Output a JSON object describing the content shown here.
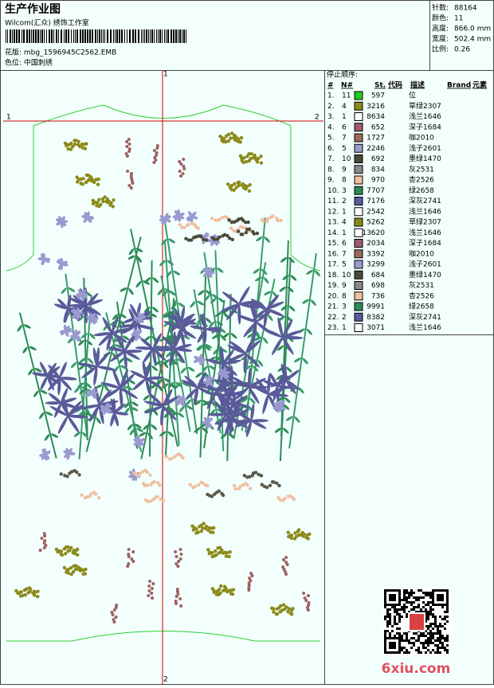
{
  "header": {
    "title": "生产作业图",
    "company": "Wilcom(汇众) 绣饰工作室",
    "file": "花版: mbg_1596945C2562.EMB",
    "colorway": "色位: 中国刺绣"
  },
  "stats": [
    {
      "label": "针数:",
      "value": "88164"
    },
    {
      "label": "颜色:",
      "value": "11"
    },
    {
      "label": "高度:",
      "value": "866.0 mm"
    },
    {
      "label": "宽度:",
      "value": "502.4 mm"
    },
    {
      "label": "比例:",
      "value": "0.26"
    }
  ],
  "markers": {
    "top": "1",
    "left": "1",
    "right": "2",
    "bottom": "2"
  },
  "stop_sequence": {
    "title": "停止顺序:",
    "columns": [
      "#",
      "N#",
      "St.",
      "代码",
      "描述",
      "Brand",
      "元素"
    ],
    "rows": [
      {
        "index": "1.",
        "needle": "11",
        "color": "#22cc22",
        "stitches": "597",
        "description": "位"
      },
      {
        "index": "2.",
        "needle": "4",
        "color": "#8b8b1a",
        "stitches": "3216",
        "description": "草绿2307"
      },
      {
        "index": "3.",
        "needle": "1",
        "color": "#ffffff",
        "stitches": "8634",
        "description": "浅兰1646"
      },
      {
        "index": "4.",
        "needle": "6",
        "color": "#a05a6a",
        "stitches": "652",
        "description": "深子1684"
      },
      {
        "index": "5.",
        "needle": "7",
        "color": "#9c6a5a",
        "stitches": "1727",
        "description": "咖2010"
      },
      {
        "index": "6.",
        "needle": "5",
        "color": "#9a9ad0",
        "stitches": "2246",
        "description": "浅子2601"
      },
      {
        "index": "7.",
        "needle": "10",
        "color": "#4a4a3a",
        "stitches": "692",
        "description": "墨绿1470"
      },
      {
        "index": "8.",
        "needle": "9",
        "color": "#8a8a8a",
        "stitches": "834",
        "description": "灰2531"
      },
      {
        "index": "9.",
        "needle": "8",
        "color": "#f0c0a0",
        "stitches": "970",
        "description": "杏2526"
      },
      {
        "index": "10.",
        "needle": "3",
        "color": "#2e8b57",
        "stitches": "7707",
        "description": "绿2658"
      },
      {
        "index": "11.",
        "needle": "2",
        "color": "#5a5a9a",
        "stitches": "7176",
        "description": "深灰2741"
      },
      {
        "index": "12.",
        "needle": "1",
        "color": "#ffffff",
        "stitches": "2542",
        "description": "浅兰1646"
      },
      {
        "index": "13.",
        "needle": "4",
        "color": "#8b8b1a",
        "stitches": "5262",
        "description": "草绿2307"
      },
      {
        "index": "14.",
        "needle": "1",
        "color": "#ffffff",
        "stitches": "13620",
        "description": "浅兰1646"
      },
      {
        "index": "15.",
        "needle": "6",
        "color": "#a05a6a",
        "stitches": "2034",
        "description": "深子1684"
      },
      {
        "index": "16.",
        "needle": "7",
        "color": "#9c6a5a",
        "stitches": "3392",
        "description": "咖2010"
      },
      {
        "index": "17.",
        "needle": "5",
        "color": "#9a9ad0",
        "stitches": "3299",
        "description": "浅子2601"
      },
      {
        "index": "18.",
        "needle": "10",
        "color": "#4a4a3a",
        "stitches": "684",
        "description": "墨绿1470"
      },
      {
        "index": "19.",
        "needle": "9",
        "color": "#8a8a8a",
        "stitches": "698",
        "description": "灰2531"
      },
      {
        "index": "20.",
        "needle": "8",
        "color": "#f0c0a0",
        "stitches": "736",
        "description": "杏2526"
      },
      {
        "index": "21.",
        "needle": "3",
        "color": "#2e8b57",
        "stitches": "9991",
        "description": "绿2658"
      },
      {
        "index": "22.",
        "needle": "2",
        "color": "#5a5a9a",
        "stitches": "8382",
        "description": "深灰2741"
      },
      {
        "index": "23.",
        "needle": "1",
        "color": "#ffffff",
        "stitches": "3071",
        "description": "浅兰1646"
      }
    ]
  },
  "watermark": "6xiu.com"
}
